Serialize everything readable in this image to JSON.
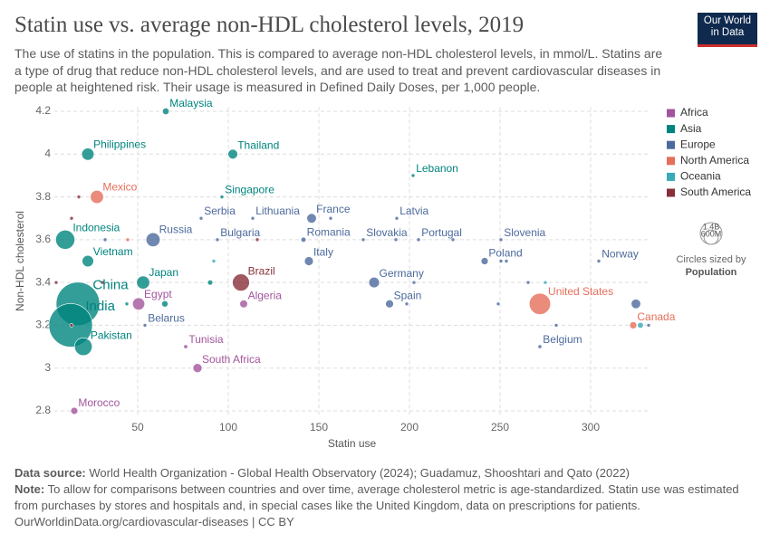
{
  "chart_data": {
    "type": "scatter",
    "title": "Statin use vs. average non-HDL cholesterol levels, 2019",
    "subtitle": "The use of statins in the population. This is compared to average non-HDL cholesterol levels, in mmol/L. Statins are a type of drug that reduce non-HDL cholesterol levels, and are used to treat and prevent cardiovascular diseases in people at heightened risk. Their usage is measured in Defined Daily Doses, per 1,000 people.",
    "logo": [
      "Our World",
      "in Data"
    ],
    "x_label": "Statin use",
    "y_label": "Non-HDL cholesterol",
    "xlim": [
      4,
      332.5
    ],
    "xticks": [
      50,
      100,
      150,
      200,
      250,
      300
    ],
    "ylim": [
      2.78,
      4.22
    ],
    "yticks": [
      2.8,
      3,
      3.2,
      3.4,
      3.6,
      3.8,
      4,
      4.2
    ],
    "grid": true,
    "legend": "right",
    "size_legend": {
      "title": "Circles sized by",
      "variable": "Population",
      "values": [
        {
          "value": 1400000000,
          "label": "1.4B"
        },
        {
          "value": 600000000,
          "label": "600M"
        }
      ]
    },
    "series": [
      {
        "name": "Africa",
        "color": "#a2559c",
        "x": [
          50.5,
          108.5,
          76.5,
          83,
          15
        ],
        "values": [
          3.3,
          3.3,
          3.1,
          3.0,
          2.8
        ],
        "sizes": [
          110000000,
          45000000,
          12000000,
          60000000,
          37000000
        ],
        "labels": [
          "Egypt",
          "Algeria",
          "Tunisia",
          "South Africa",
          "Morocco"
        ]
      },
      {
        "name": "Asia",
        "color": "#00847e",
        "x": [
          65.5,
          22.5,
          102.5,
          96.5,
          202,
          10,
          22.5,
          53,
          17,
          13,
          20,
          65,
          90,
          44
        ],
        "values": [
          4.2,
          4.0,
          4.0,
          3.8,
          3.9,
          3.6,
          3.5,
          3.4,
          3.3,
          3.2,
          3.1,
          3.3,
          3.4,
          3.3
        ],
        "sizes": [
          33000000,
          112000000,
          70000000,
          6000000,
          6000000,
          270000000,
          97000000,
          126000000,
          1400000000,
          1400000000,
          230000000,
          30000000,
          20000000,
          5000000
        ],
        "labels": [
          "Malaysia",
          "Philippines",
          "Thailand",
          "Singapore",
          "Lebanon",
          "Indonesia",
          "Vietnam",
          "Japan",
          "China",
          "India",
          "Pakistan",
          null,
          null,
          null
        ]
      },
      {
        "name": "Europe",
        "color": "#4c6a9c",
        "x": [
          85,
          113.5,
          146,
          156.5,
          193,
          58.5,
          32,
          94,
          141.5,
          174.5,
          192.5,
          205,
          224,
          250.5,
          144.5,
          241.5,
          250.5,
          253.5,
          304.5,
          180.5,
          202.5,
          265.5,
          189,
          198.5,
          249,
          54,
          281,
          325,
          332,
          272
        ],
        "values": [
          3.7,
          3.7,
          3.7,
          3.7,
          3.7,
          3.6,
          3.6,
          3.6,
          3.6,
          3.6,
          3.6,
          3.6,
          3.6,
          3.6,
          3.5,
          3.5,
          3.5,
          3.5,
          3.5,
          3.4,
          3.4,
          3.4,
          3.3,
          3.3,
          3.3,
          3.2,
          3.2,
          3.3,
          3.2,
          3.1
        ],
        "sizes": [
          7000000,
          3000000,
          68000000,
          5000000,
          2000000,
          144000000,
          10000000,
          7000000,
          19000000,
          5000000,
          4000000,
          10000000,
          2000000,
          2000000,
          59000000,
          38000000,
          4000000,
          3000000,
          5000000,
          83000000,
          5000000,
          5000000,
          47000000,
          5000000,
          4000000,
          9000000,
          4000000,
          67000000,
          3000000,
          11000000
        ],
        "labels": [
          "Serbia",
          "Lithuania",
          "France",
          null,
          "Latvia",
          "Russia",
          null,
          "Bulgaria",
          "Romania",
          "Slovakia",
          null,
          "Portugal",
          null,
          "Slovenia",
          "Italy",
          "Poland",
          null,
          null,
          "Norway",
          "Germany",
          null,
          null,
          "Spain",
          null,
          null,
          "Belarus",
          null,
          null,
          null,
          "Belgium"
        ]
      },
      {
        "name": "North America",
        "color": "#e56e5a",
        "x": [
          27.5,
          44.5,
          272,
          323.5
        ],
        "values": [
          3.8,
          3.6,
          3.3,
          3.2
        ],
        "sizes": [
          127000000,
          2000000,
          335000000,
          38000000
        ],
        "labels": [
          "Mexico",
          null,
          "United States",
          "Canada"
        ]
      },
      {
        "name": "Oceania",
        "color": "#38aaba",
        "x": [
          92,
          275,
          327.5
        ],
        "values": [
          3.5,
          3.4,
          3.2
        ],
        "sizes": [
          1000000,
          5000000,
          26000000
        ],
        "labels": [
          null,
          null,
          null
        ]
      },
      {
        "name": "South America",
        "color": "#883039",
        "x": [
          17.5,
          13.5,
          5,
          30.5,
          107,
          116,
          13.5
        ],
        "values": [
          3.8,
          3.7,
          3.4,
          3.4,
          3.4,
          3.6,
          3.2
        ],
        "sizes": [
          3000000,
          10000000,
          7000000,
          4000000,
          215000000,
          3000000,
          3000000
        ],
        "labels": [
          null,
          null,
          null,
          null,
          "Brazil",
          null,
          null
        ]
      }
    ],
    "source_label": "Data source:",
    "source": "World Health Organization - Global Health Observatory (2024); Guadamuz, Shooshtari and Qato (2022)",
    "note_label": "Note:",
    "note": "To allow for comparisons between countries and over time, average cholesterol metric is age-standardized. Statin use was estimated from purchases by stores and hospitals and, in special cases like the United Kingdom, data on prescriptions for patients.",
    "url": "OurWorldinData.org/cardiovascular-diseases | CC BY"
  }
}
